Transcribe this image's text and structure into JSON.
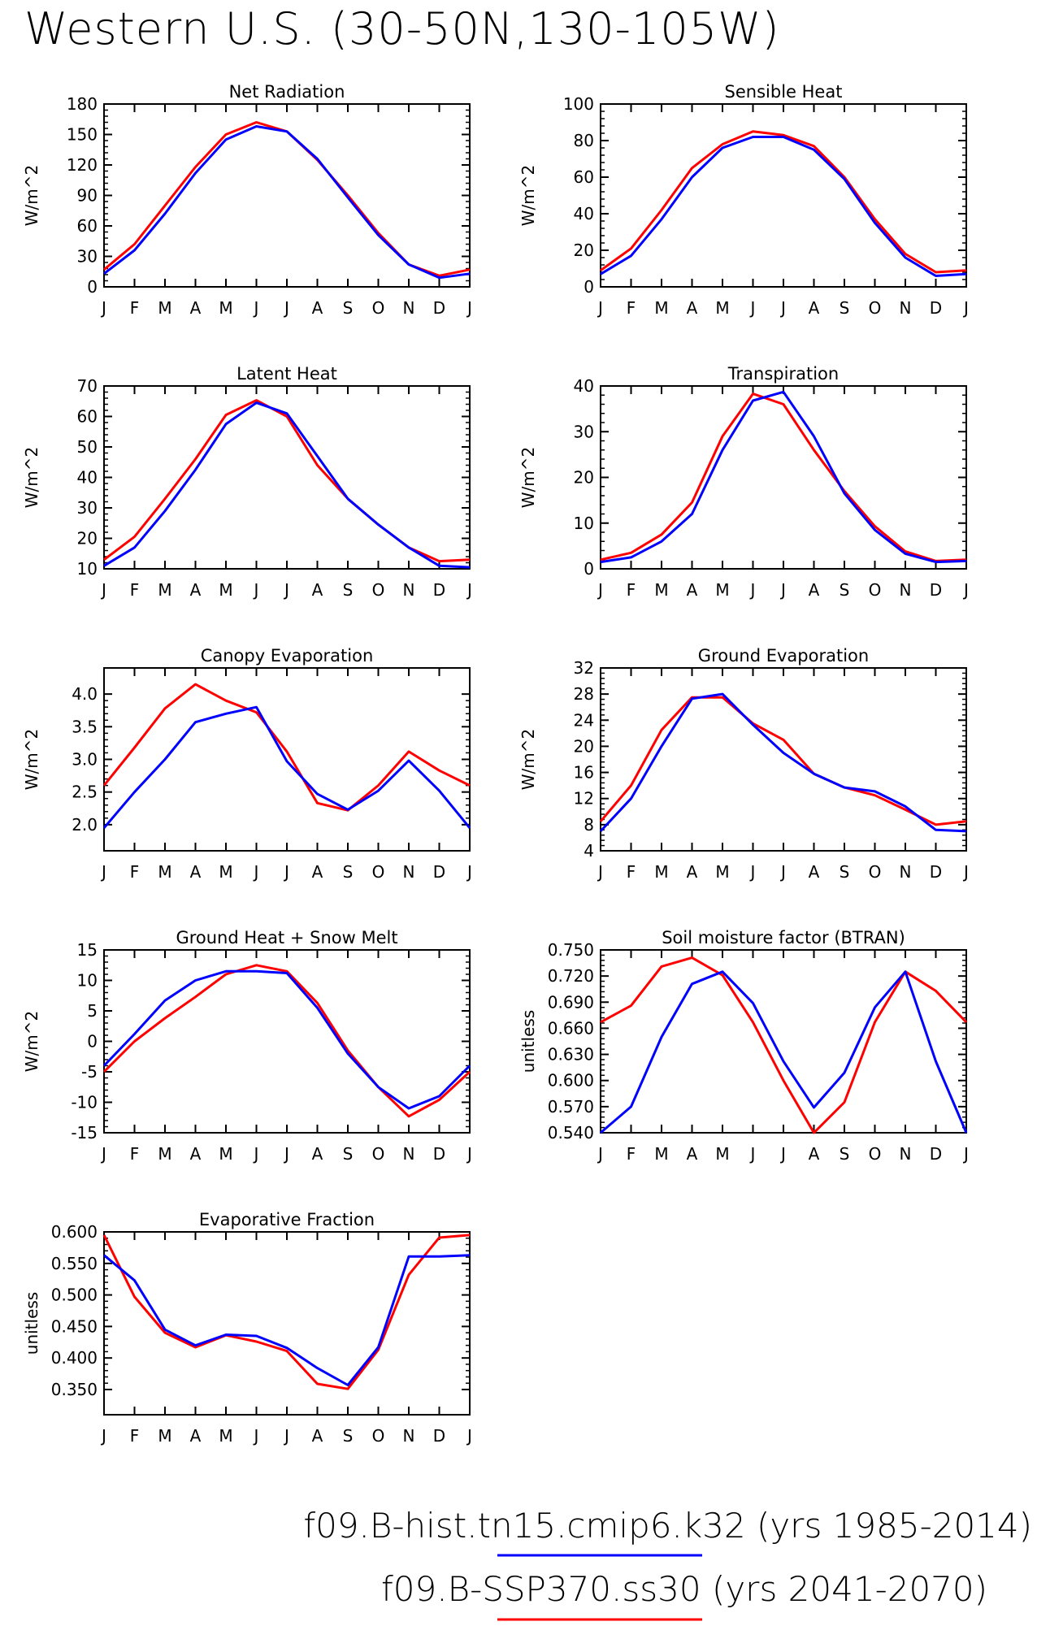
{
  "figure_title": "Western U.S. (30-50N,130-105W)",
  "colors": {
    "hist": "#0000ff",
    "future": "#ff0000",
    "axes": "#000000"
  },
  "legend": [
    {
      "label": "f09.B-hist.tn15.cmip6.k32 (yrs 1985-2014)",
      "color": "#0000ff"
    },
    {
      "label": "f09.B-SSP370.ss30 (yrs 2041-2070)",
      "color": "#ff0000"
    }
  ],
  "chart_data": [
    {
      "type": "line",
      "title": "Net Radiation",
      "ylabel": "W/m^2",
      "categories": [
        "J",
        "F",
        "M",
        "A",
        "M",
        "J",
        "J",
        "A",
        "S",
        "O",
        "N",
        "D",
        "J"
      ],
      "ylim": [
        0,
        180
      ],
      "yticks": [
        0,
        30,
        60,
        90,
        120,
        150,
        180
      ],
      "yticklabels": [
        "0",
        "30",
        "60",
        "90",
        "120",
        "150",
        "180"
      ],
      "series": [
        {
          "color": "#ff0000",
          "values": [
            17,
            42,
            80,
            118,
            150,
            162,
            153,
            125,
            90,
            53,
            22,
            11,
            17
          ]
        },
        {
          "color": "#0000ff",
          "values": [
            13,
            36,
            72,
            112,
            145,
            158,
            153,
            126,
            88,
            51,
            22,
            9,
            13
          ]
        }
      ]
    },
    {
      "type": "line",
      "title": "Sensible Heat",
      "ylabel": "W/m^2",
      "categories": [
        "J",
        "F",
        "M",
        "A",
        "M",
        "J",
        "J",
        "A",
        "S",
        "O",
        "N",
        "D",
        "J"
      ],
      "ylim": [
        0,
        100
      ],
      "yticks": [
        0,
        20,
        40,
        60,
        80,
        100
      ],
      "yticklabels": [
        "0",
        "20",
        "40",
        "60",
        "80",
        "100"
      ],
      "series": [
        {
          "color": "#ff0000",
          "values": [
            9,
            21,
            42,
            65,
            78,
            85,
            83,
            77,
            60,
            37,
            18,
            8,
            9
          ]
        },
        {
          "color": "#0000ff",
          "values": [
            7,
            17,
            37,
            60,
            76,
            82,
            82,
            75,
            59,
            35,
            16,
            6,
            7
          ]
        }
      ]
    },
    {
      "type": "line",
      "title": "Latent Heat",
      "ylabel": "W/m^2",
      "categories": [
        "J",
        "F",
        "M",
        "A",
        "M",
        "J",
        "J",
        "A",
        "S",
        "O",
        "N",
        "D",
        "J"
      ],
      "ylim": [
        10,
        70
      ],
      "yticks": [
        10,
        20,
        30,
        40,
        50,
        60,
        70
      ],
      "yticklabels": [
        "10",
        "20",
        "30",
        "40",
        "50",
        "60",
        "70"
      ],
      "series": [
        {
          "color": "#ff0000",
          "values": [
            13,
            20.5,
            33,
            46,
            60.5,
            65.3,
            60,
            44,
            33,
            24.5,
            17,
            12.5,
            13
          ]
        },
        {
          "color": "#0000ff",
          "values": [
            11,
            17,
            29,
            42.5,
            57.5,
            64.5,
            61,
            47,
            33,
            24.5,
            17,
            11,
            10.5
          ]
        }
      ]
    },
    {
      "type": "line",
      "title": "Transpiration",
      "ylabel": "W/m^2",
      "categories": [
        "J",
        "F",
        "M",
        "A",
        "M",
        "J",
        "J",
        "A",
        "S",
        "O",
        "N",
        "D",
        "J"
      ],
      "ylim": [
        0,
        40
      ],
      "yticks": [
        0,
        10,
        20,
        30,
        40
      ],
      "yticklabels": [
        "0",
        "10",
        "20",
        "30",
        "40"
      ],
      "series": [
        {
          "color": "#ff0000",
          "values": [
            2,
            3.5,
            7.5,
            14.5,
            29,
            38.3,
            36,
            26,
            17,
            9.3,
            3.8,
            1.7,
            2
          ]
        },
        {
          "color": "#0000ff",
          "values": [
            1.5,
            2.5,
            6,
            12,
            26,
            36.8,
            38.7,
            29,
            16.5,
            8.5,
            3.3,
            1.5,
            1.7
          ]
        }
      ]
    },
    {
      "type": "line",
      "title": "Canopy Evaporation",
      "ylabel": "W/m^2",
      "categories": [
        "J",
        "F",
        "M",
        "A",
        "M",
        "J",
        "J",
        "A",
        "S",
        "O",
        "N",
        "D",
        "J"
      ],
      "ylim": [
        1.6,
        4.4
      ],
      "yticks": [
        2.0,
        2.5,
        3.0,
        3.5,
        4.0
      ],
      "yticklabels": [
        "2.0",
        "2.5",
        "3.0",
        "3.5",
        "4.0"
      ],
      "series": [
        {
          "color": "#ff0000",
          "values": [
            2.6,
            3.18,
            3.78,
            4.15,
            3.9,
            3.72,
            3.12,
            2.33,
            2.22,
            2.6,
            3.12,
            2.83,
            2.6
          ]
        },
        {
          "color": "#0000ff",
          "values": [
            1.95,
            2.5,
            3.0,
            3.57,
            3.7,
            3.8,
            2.97,
            2.47,
            2.23,
            2.52,
            2.98,
            2.52,
            1.95
          ]
        }
      ]
    },
    {
      "type": "line",
      "title": "Ground Evaporation",
      "ylabel": "W/m^2",
      "categories": [
        "J",
        "F",
        "M",
        "A",
        "M",
        "J",
        "J",
        "A",
        "S",
        "O",
        "N",
        "D",
        "J"
      ],
      "ylim": [
        4,
        32
      ],
      "yticks": [
        4,
        8,
        12,
        16,
        20,
        24,
        28,
        32
      ],
      "yticklabels": [
        "4",
        "8",
        "12",
        "16",
        "20",
        "24",
        "28",
        "32"
      ],
      "series": [
        {
          "color": "#ff0000",
          "values": [
            8.5,
            14,
            22.5,
            27.5,
            27.5,
            23.5,
            21,
            15.8,
            13.7,
            12.5,
            10.3,
            8,
            8.5
          ]
        },
        {
          "color": "#0000ff",
          "values": [
            7,
            12,
            20,
            27.3,
            28,
            23.3,
            19,
            15.8,
            13.7,
            13.1,
            10.8,
            7.2,
            7
          ]
        }
      ]
    },
    {
      "type": "line",
      "title": "Ground Heat + Snow Melt",
      "ylabel": "W/m^2",
      "categories": [
        "J",
        "F",
        "M",
        "A",
        "M",
        "J",
        "J",
        "A",
        "S",
        "O",
        "N",
        "D",
        "J"
      ],
      "ylim": [
        -15,
        15
      ],
      "yticks": [
        -15,
        -10,
        -5,
        0,
        5,
        10,
        15
      ],
      "yticklabels": [
        "-15",
        "-10",
        "-5",
        "0",
        "5",
        "10",
        "15"
      ],
      "series": [
        {
          "color": "#ff0000",
          "values": [
            -5,
            0,
            3.8,
            7.3,
            11,
            12.5,
            11.5,
            6.3,
            -1.5,
            -7.5,
            -12.3,
            -9.6,
            -5
          ]
        },
        {
          "color": "#0000ff",
          "values": [
            -4,
            1.2,
            6.7,
            10,
            11.5,
            11.5,
            11.2,
            5.5,
            -2,
            -7.5,
            -11,
            -9,
            -4
          ]
        }
      ]
    },
    {
      "type": "line",
      "title": "Soil moisture factor (BTRAN)",
      "ylabel": "unitless",
      "categories": [
        "J",
        "F",
        "M",
        "A",
        "M",
        "J",
        "J",
        "A",
        "S",
        "O",
        "N",
        "D",
        "J"
      ],
      "ylim": [
        0.54,
        0.75
      ],
      "yticks": [
        0.54,
        0.57,
        0.6,
        0.63,
        0.66,
        0.69,
        0.72,
        0.75
      ],
      "yticklabels": [
        "0.540",
        "0.570",
        "0.600",
        "0.630",
        "0.660",
        "0.690",
        "0.720",
        "0.750"
      ],
      "series": [
        {
          "color": "#ff0000",
          "values": [
            0.667,
            0.686,
            0.731,
            0.741,
            0.721,
            0.667,
            0.6,
            0.54,
            0.575,
            0.667,
            0.725,
            0.703,
            0.667
          ]
        },
        {
          "color": "#0000ff",
          "values": [
            0.54,
            0.57,
            0.65,
            0.711,
            0.725,
            0.689,
            0.622,
            0.569,
            0.609,
            0.684,
            0.725,
            0.622,
            0.54
          ]
        }
      ]
    },
    {
      "type": "line",
      "title": "Evaporative Fraction",
      "ylabel": "unitless",
      "categories": [
        "J",
        "F",
        "M",
        "A",
        "M",
        "J",
        "J",
        "A",
        "S",
        "O",
        "N",
        "D",
        "J"
      ],
      "ylim": [
        0.31,
        0.6
      ],
      "yticks": [
        0.35,
        0.4,
        0.45,
        0.5,
        0.55,
        0.6
      ],
      "yticklabels": [
        "0.350",
        "0.400",
        "0.450",
        "0.500",
        "0.550",
        "0.600"
      ],
      "series": [
        {
          "color": "#ff0000",
          "values": [
            0.595,
            0.497,
            0.44,
            0.417,
            0.436,
            0.426,
            0.411,
            0.359,
            0.351,
            0.413,
            0.532,
            0.591,
            0.595
          ]
        },
        {
          "color": "#0000ff",
          "values": [
            0.563,
            0.523,
            0.445,
            0.42,
            0.437,
            0.435,
            0.416,
            0.384,
            0.357,
            0.417,
            0.561,
            0.561,
            0.563
          ]
        }
      ]
    }
  ]
}
